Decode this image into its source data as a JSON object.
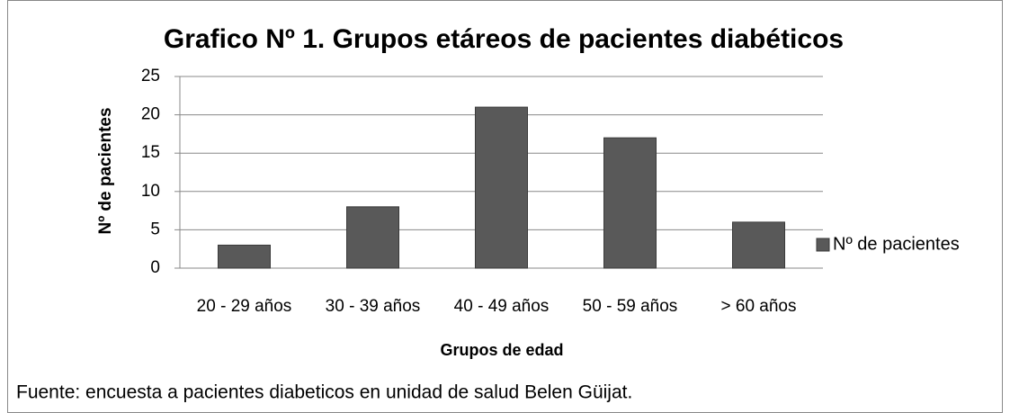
{
  "chart_data": {
    "type": "bar",
    "title": "Grafico Nº 1. Grupos etáreos  de pacientes diabéticos",
    "x_label": "Grupos de edad",
    "y_label": "Nº de pacientes",
    "categories": [
      "20 - 29 años",
      "30 - 39 años",
      "40 - 49 años",
      "50 - 59 años",
      "> 60 años"
    ],
    "series": [
      {
        "name": "Nº de pacientes",
        "color": "#595959",
        "values": [
          3,
          8,
          21,
          17,
          6
        ]
      }
    ],
    "ylim": [
      0,
      25
    ],
    "yticks": [
      0,
      5,
      10,
      15,
      20,
      25
    ],
    "grid": true,
    "legend": "right",
    "note": "Fuente: encuesta a pacientes diabeticos en unidad de salud Belen Güijat."
  }
}
